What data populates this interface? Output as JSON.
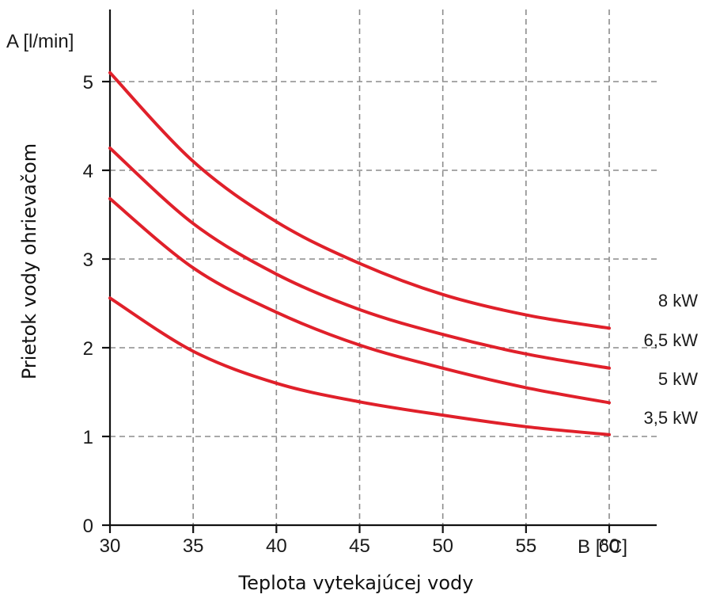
{
  "chart_data": {
    "type": "line",
    "title": "",
    "xlabel": "Teplota vytekajúcej vody",
    "ylabel": "Prietok vody ohrievačom",
    "x_unit_label": "B [°C]",
    "y_unit_label": "A [l/min]",
    "xlim": [
      30,
      63
    ],
    "ylim": [
      0,
      5.4
    ],
    "xticks": [
      30,
      35,
      40,
      45,
      50,
      55,
      60
    ],
    "yticks": [
      0,
      1,
      2,
      3,
      4,
      5
    ],
    "grid": true,
    "legend": "labels at right end of each curve",
    "line_color": "#e0202a",
    "series": [
      {
        "name": "8 kW",
        "x": [
          30,
          35,
          40,
          45,
          50,
          55,
          60
        ],
        "y": [
          5.1,
          4.1,
          3.42,
          2.95,
          2.6,
          2.37,
          2.22
        ]
      },
      {
        "name": "6,5 kW",
        "x": [
          30,
          35,
          40,
          45,
          50,
          55,
          60
        ],
        "y": [
          4.25,
          3.4,
          2.83,
          2.43,
          2.15,
          1.93,
          1.77
        ]
      },
      {
        "name": "5 kW",
        "x": [
          30,
          35,
          40,
          45,
          50,
          55,
          60
        ],
        "y": [
          3.68,
          2.9,
          2.4,
          2.03,
          1.77,
          1.55,
          1.38
        ]
      },
      {
        "name": "3,5 kW",
        "x": [
          30,
          35,
          40,
          45,
          50,
          55,
          60
        ],
        "y": [
          2.56,
          1.96,
          1.6,
          1.39,
          1.24,
          1.11,
          1.02
        ]
      }
    ]
  }
}
